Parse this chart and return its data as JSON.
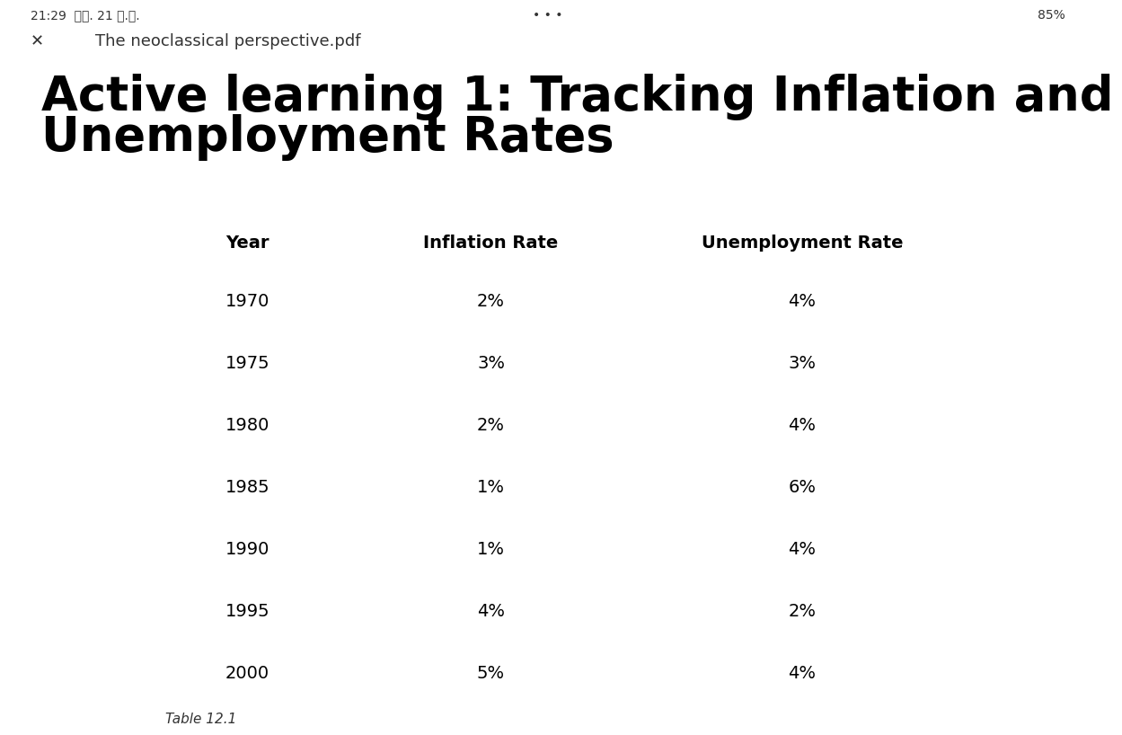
{
  "title_line1": "Active learning 1: Tracking Inflation and",
  "title_line2": "Unemployment Rates",
  "title_fontsize": 38,
  "title_fontweight": "bold",
  "title_color": "#000000",
  "header": [
    "Year",
    "Inflation Rate",
    "Unemployment Rate"
  ],
  "rows": [
    [
      "1970",
      "2%",
      "4%"
    ],
    [
      "1975",
      "3%",
      "3%"
    ],
    [
      "1980",
      "2%",
      "4%"
    ],
    [
      "1985",
      "1%",
      "6%"
    ],
    [
      "1990",
      "1%",
      "4%"
    ],
    [
      "1995",
      "4%",
      "2%"
    ],
    [
      "2000",
      "5%",
      "4%"
    ]
  ],
  "caption": "Table 12.1",
  "bg_color": "#ffffff",
  "table_bg": "#f0f0f0",
  "header_bg": "#b8cce4",
  "header_border_color": "#2e5fa3",
  "row_border_color": "#555555",
  "table_outer_border": "#555555",
  "header_fontsize": 14,
  "cell_fontsize": 14,
  "caption_fontsize": 11,
  "status_bar_text": "21:29  พฤ. 21 ม.ย.",
  "pdf_title": "The neoclassical perspective.pdf",
  "battery_text": "85%"
}
